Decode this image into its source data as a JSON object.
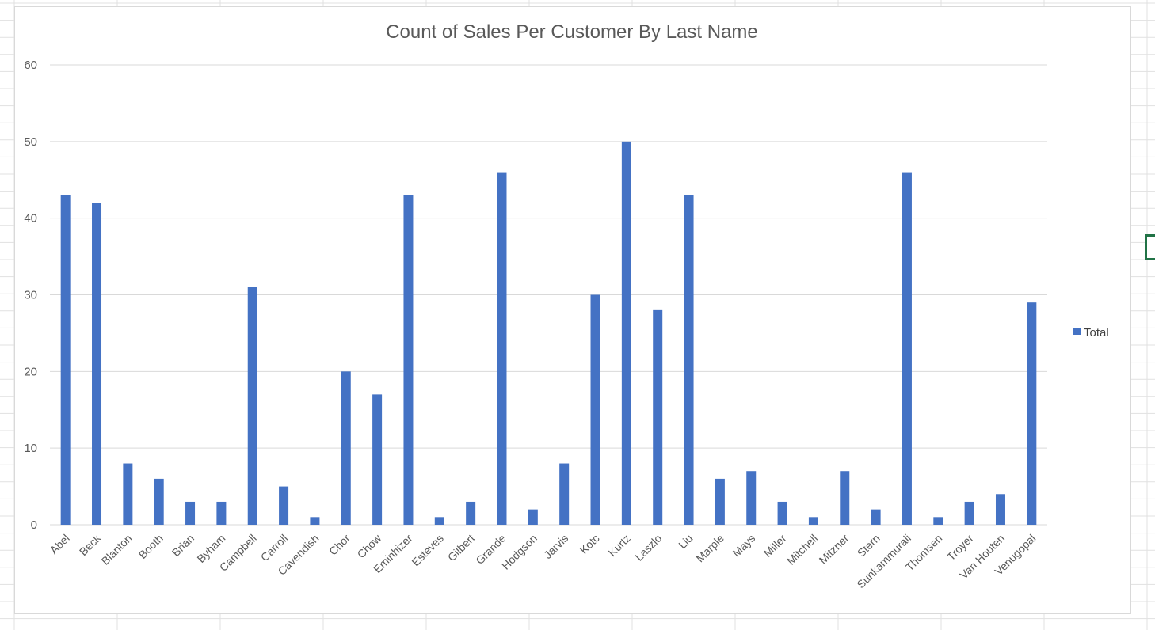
{
  "colors": {
    "bar": "#4472C4",
    "gridline": "#d9d9d9",
    "text": "#595959",
    "selection": "#217346"
  },
  "chart_data": {
    "type": "bar",
    "title": "Count of Sales Per Customer By Last Name",
    "xlabel": "",
    "ylabel": "",
    "ylim": [
      0,
      60
    ],
    "yticks": [
      0,
      10,
      20,
      30,
      40,
      50,
      60
    ],
    "grid": true,
    "legend_position": "right",
    "categories": [
      "Abel",
      "Beck",
      "Blanton",
      "Booth",
      "Brian",
      "Byham",
      "Campbell",
      "Carroll",
      "Cavendish",
      "Chor",
      "Chow",
      "Eminhizer",
      "Esteves",
      "Gilbert",
      "Grande",
      "Hodgson",
      "Jarvis",
      "Kotc",
      "Kurtz",
      "Laszlo",
      "Liu",
      "Marple",
      "Mays",
      "Miller",
      "Mitchell",
      "Mitzner",
      "Stern",
      "Sunkammurali",
      "Thomsen",
      "Troyer",
      "Van Houten",
      "Venugopal"
    ],
    "series": [
      {
        "name": "Total",
        "values": [
          43,
          42,
          8,
          6,
          3,
          3,
          31,
          5,
          1,
          20,
          17,
          43,
          1,
          3,
          46,
          2,
          8,
          30,
          50,
          28,
          43,
          6,
          7,
          3,
          1,
          7,
          2,
          46,
          1,
          3,
          4,
          29
        ]
      }
    ]
  }
}
